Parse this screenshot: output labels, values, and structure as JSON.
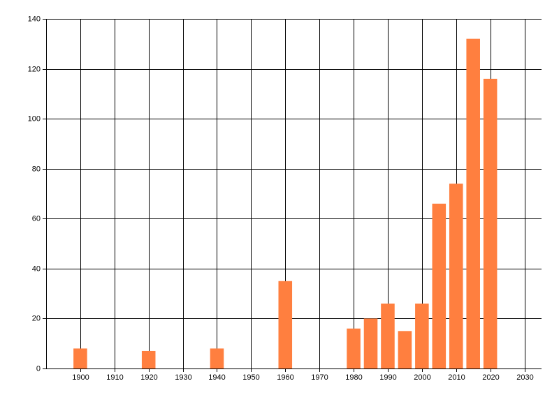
{
  "chart_data": {
    "type": "bar",
    "x": [
      1900,
      1920,
      1940,
      1960,
      1980,
      1985,
      1990,
      1995,
      2000,
      2005,
      2010,
      2015,
      2020
    ],
    "values": [
      8,
      7,
      8,
      35,
      16,
      20,
      26,
      15,
      26,
      66,
      74,
      132,
      116
    ],
    "color": "#ff7f3f",
    "xlim": [
      1890,
      2035
    ],
    "xticks": [
      1900,
      1910,
      1920,
      1930,
      1940,
      1950,
      1960,
      1970,
      1980,
      1990,
      2000,
      2010,
      2020,
      2030
    ],
    "ylim": [
      0,
      140
    ],
    "yticks": [
      0,
      20,
      40,
      60,
      80,
      100,
      120,
      140
    ],
    "grid": true
  }
}
